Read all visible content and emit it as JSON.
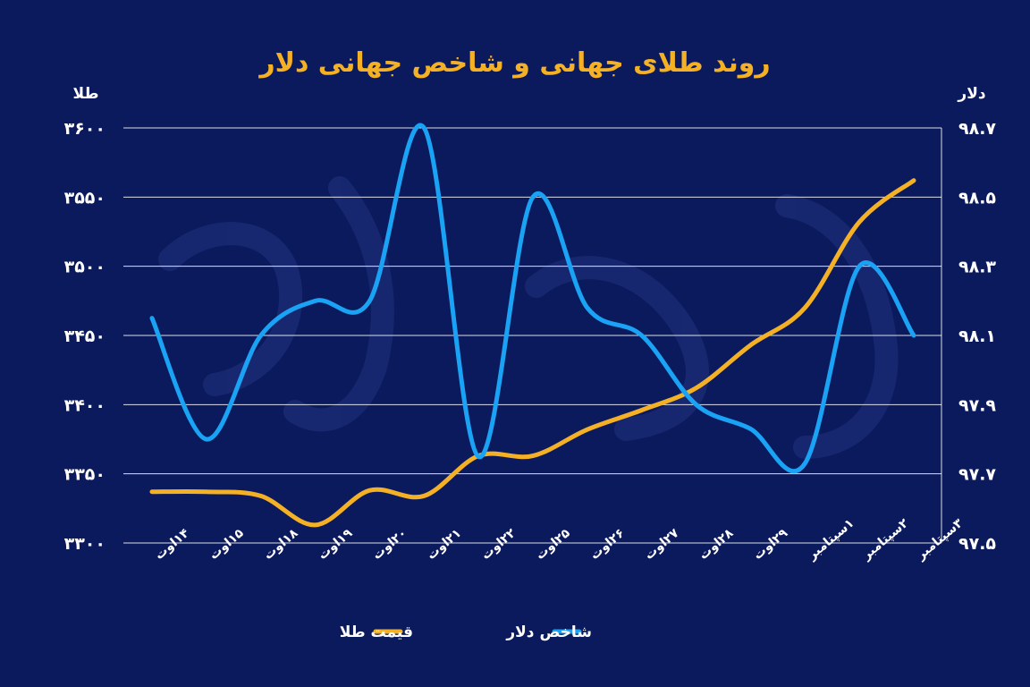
{
  "chart_data": {
    "type": "line",
    "title": "روند طلای جهانی و شاخص جهانی دلار",
    "left_axis_label": "طلا",
    "right_axis_label": "دلار",
    "categories": [
      "۱۴اوت",
      "۱۵اوت",
      "۱۸اوت",
      "۱۹اوت",
      "۲۰اوت",
      "۲۱اوت",
      "۲۲اوت",
      "۲۵اوت",
      "۲۶اوت",
      "۲۷اوت",
      "۲۸اوت",
      "۲۹اوت",
      "۱سپتامبر",
      "۲سپتامبر",
      "۳سپتامبر"
    ],
    "y_left_ticks": [
      "۳۳۰۰",
      "۳۳۵۰",
      "۳۴۰۰",
      "۳۴۵۰",
      "۳۵۰۰",
      "۳۵۵۰",
      "۳۶۰۰"
    ],
    "y_left_range": [
      3300,
      3600
    ],
    "y_right_ticks": [
      "۹۷.۵",
      "۹۷.۷",
      "۹۷.۹",
      "۹۸.۱",
      "۹۸.۳",
      "۹۸.۵",
      "۹۸.۷"
    ],
    "y_right_range": [
      97.5,
      98.7
    ],
    "grid": true,
    "legend_position": "bottom",
    "series": [
      {
        "name": "قیمت طلا",
        "axis": "left",
        "color": "#f5b125",
        "values": [
          3337,
          3337,
          3334,
          3313,
          3338,
          3334,
          3363,
          3363,
          3382,
          3396,
          3412,
          3443,
          3470,
          3532,
          3562
        ]
      },
      {
        "name": "شاخص دلار",
        "axis": "right",
        "color": "#1aa3f5",
        "values": [
          98.15,
          97.8,
          98.1,
          98.2,
          98.2,
          98.7,
          97.75,
          98.5,
          98.18,
          98.1,
          97.9,
          97.83,
          97.73,
          98.3,
          98.1
        ]
      }
    ]
  }
}
